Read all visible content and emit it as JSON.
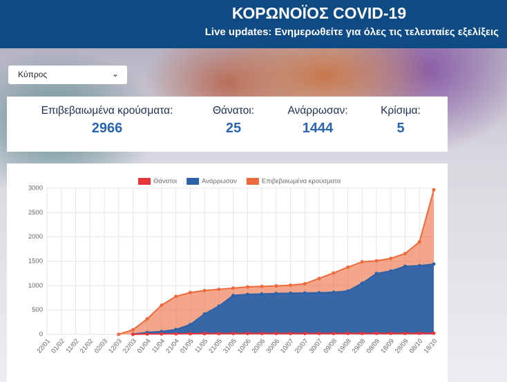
{
  "header": {
    "title": "ΚΟΡΩΝΟΪΟΣ COVID-19",
    "subtitle": "Live updates: Ενημερωθείτε για όλες τις τελευταίες εξελίξεις"
  },
  "selector": {
    "value": "Κύπρος"
  },
  "stats": [
    {
      "label": "Επιβεβαιωμένα κρούσματα:",
      "value": 2966
    },
    {
      "label": "Θάνατοι:",
      "value": 25
    },
    {
      "label": "Ανάρρωσαν:",
      "value": 1444
    },
    {
      "label": "Κρίσιμα:",
      "value": 5
    }
  ],
  "chart_data": {
    "type": "area",
    "categories": [
      "22/01",
      "01/02",
      "11/02",
      "21/02",
      "02/03",
      "12/03",
      "22/03",
      "01/04",
      "11/04",
      "21/04",
      "01/05",
      "11/05",
      "21/05",
      "31/05",
      "10/06",
      "20/06",
      "30/06",
      "10/07",
      "20/07",
      "30/07",
      "09/08",
      "19/08",
      "29/08",
      "08/09",
      "18/09",
      "28/09",
      "08/10",
      "18/10"
    ],
    "series": [
      {
        "name": "Θάνατοι",
        "color": "#e8353b",
        "values": [
          null,
          null,
          null,
          null,
          null,
          null,
          1,
          9,
          11,
          12,
          15,
          17,
          18,
          19,
          19,
          19,
          19,
          19,
          19,
          19,
          20,
          21,
          22,
          22,
          22,
          22,
          23,
          25
        ]
      },
      {
        "name": "Ανάρρωσαν",
        "color": "#2d62a8",
        "values": [
          null,
          null,
          null,
          null,
          null,
          null,
          3,
          40,
          60,
          100,
          200,
          420,
          580,
          800,
          820,
          830,
          840,
          845,
          850,
          855,
          865,
          890,
          1050,
          1250,
          1300,
          1400,
          1410,
          1444
        ]
      },
      {
        "name": "Επιβεβαιωμένα κρούσματα",
        "color": "#ec6a3c",
        "values": [
          null,
          null,
          null,
          null,
          null,
          2,
          95,
          320,
          600,
          780,
          860,
          900,
          925,
          950,
          975,
          985,
          995,
          1010,
          1040,
          1150,
          1260,
          1380,
          1490,
          1510,
          1560,
          1660,
          1900,
          2966
        ]
      }
    ],
    "ylim": [
      0,
      3000
    ],
    "yticks": [
      0,
      500,
      1000,
      1500,
      2000,
      2500,
      3000
    ],
    "grid": true,
    "legend": "top"
  }
}
